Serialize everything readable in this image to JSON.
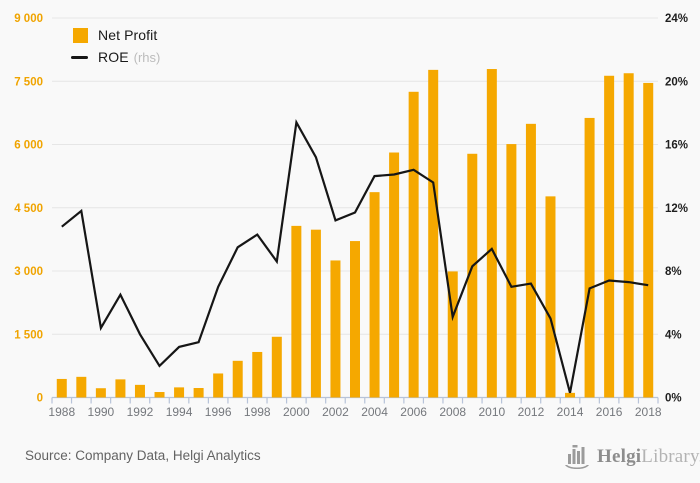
{
  "chart_data": {
    "type": "bar",
    "title": "",
    "categories": [
      1988,
      1989,
      1990,
      1991,
      1992,
      1993,
      1994,
      1995,
      1996,
      1997,
      1998,
      1999,
      2000,
      2001,
      2002,
      2003,
      2004,
      2005,
      2006,
      2007,
      2008,
      2009,
      2010,
      2011,
      2012,
      2013,
      2014,
      2015,
      2016,
      2017,
      2018
    ],
    "series": [
      {
        "name": "Net Profit",
        "type": "bar",
        "axis": "left",
        "values": [
          440,
          490,
          220,
          430,
          300,
          130,
          240,
          225,
          570,
          870,
          1080,
          1440,
          4070,
          3980,
          3250,
          3710,
          4870,
          5810,
          7250,
          7770,
          2990,
          5780,
          7790,
          6010,
          6490,
          4770,
          110,
          6630,
          7630,
          7690,
          7460
        ]
      },
      {
        "name": "ROE",
        "type": "line",
        "axis": "right",
        "values": [
          10.8,
          11.8,
          4.4,
          6.5,
          4.0,
          2.0,
          3.2,
          3.5,
          7.0,
          9.5,
          10.3,
          8.6,
          17.4,
          15.2,
          11.2,
          11.7,
          14.0,
          14.1,
          14.4,
          13.6,
          5.1,
          8.3,
          9.4,
          7.0,
          7.2,
          5.0,
          0.3,
          6.9,
          7.4,
          7.3,
          7.1
        ]
      }
    ],
    "left_axis": {
      "min": 0,
      "max": 9000,
      "step": 1500,
      "labels": [
        "0",
        "1 500",
        "3 000",
        "4 500",
        "6 000",
        "7 500",
        "9 000"
      ],
      "values": [
        0,
        1500,
        3000,
        4500,
        6000,
        7500,
        9000
      ]
    },
    "right_axis": {
      "min": 0,
      "max": 24,
      "step": 4,
      "labels": [
        "0%",
        "4%",
        "8%",
        "12%",
        "16%",
        "20%",
        "24%"
      ],
      "values": [
        0,
        4,
        8,
        12,
        16,
        20,
        24
      ]
    },
    "x_axis": {
      "label_years": [
        1988,
        1990,
        1992,
        1994,
        1996,
        1998,
        2000,
        2002,
        2004,
        2006,
        2008,
        2010,
        2012,
        2014,
        2016,
        2018
      ]
    },
    "grid": true,
    "legend_position": "top-left"
  },
  "legend": {
    "items": [
      {
        "label": "Net Profit",
        "suffix": ""
      },
      {
        "label": "ROE",
        "suffix": "(rhs)"
      }
    ]
  },
  "footer": {
    "source": "Source: Company Data, Helgi Analytics",
    "logo_bold": "Helgi",
    "logo_light": "Library."
  },
  "colors": {
    "bar": "#f5a800",
    "line": "#161616",
    "grid": "#e6e6e6",
    "axis": "#b7c3d9",
    "left_axis_text": "#f0a400",
    "right_axis_text": "#1f1f1f",
    "x_axis_text": "#75787d",
    "legend_suffix": "#bcbcbc",
    "source_text": "#636363",
    "logo_dark": "#8d8d8d",
    "logo_light": "#b3b3b3",
    "background": "#f9f9f9"
  }
}
